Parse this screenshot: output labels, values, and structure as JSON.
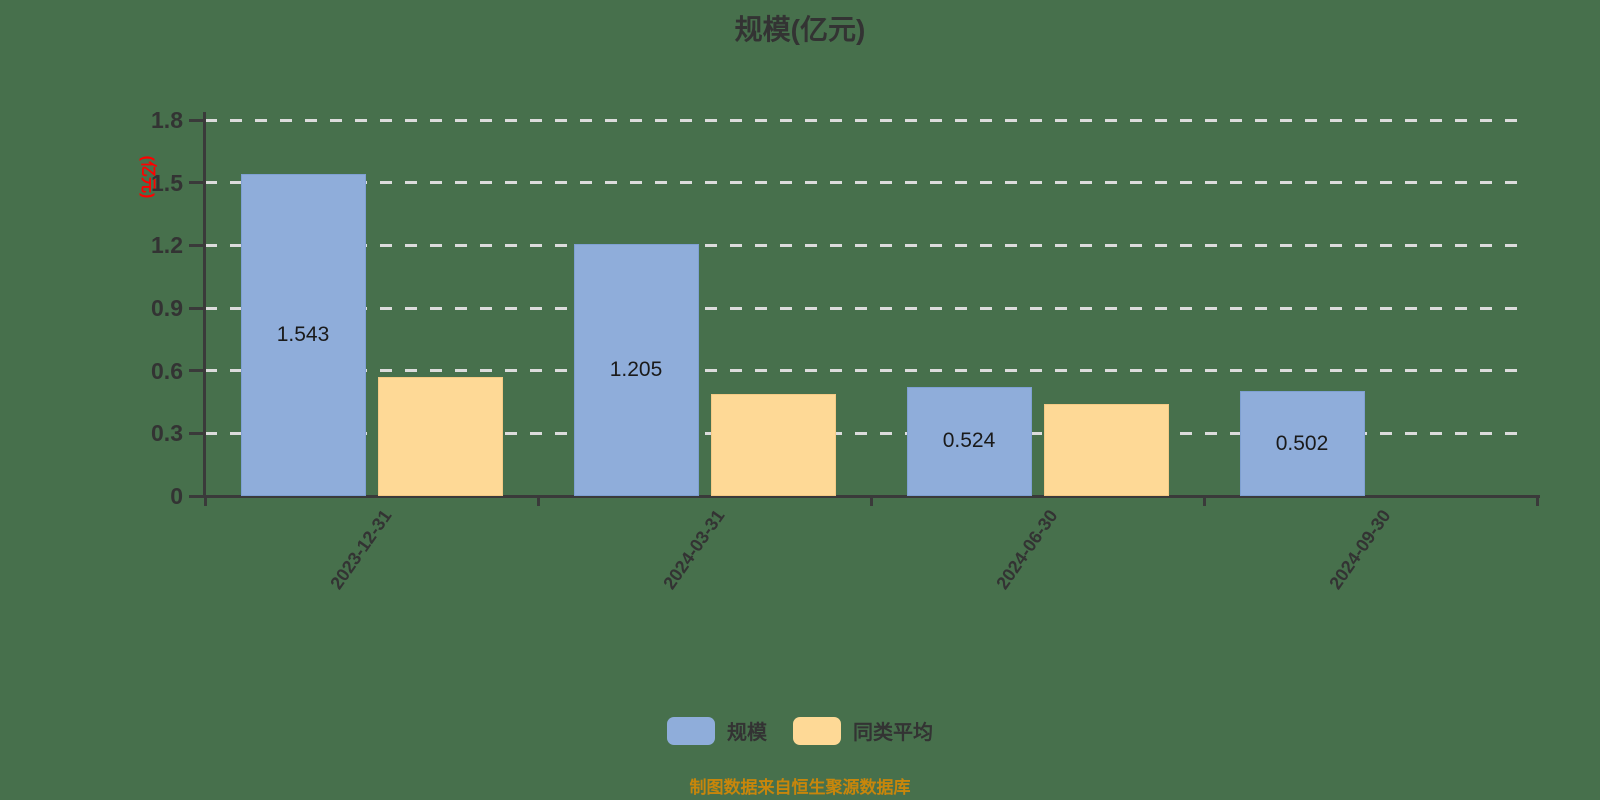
{
  "title": "规模(亿元)",
  "y_axis": {
    "name": "(亿元)",
    "ticks": [
      "0",
      "0.3",
      "0.6",
      "0.9",
      "1.2",
      "1.5",
      "1.8"
    ],
    "tick_values": [
      0,
      0.3,
      0.6,
      0.9,
      1.2,
      1.5,
      1.8
    ]
  },
  "chart_data": {
    "type": "bar",
    "title": "规模(亿元)",
    "ylabel": "(亿元)",
    "xlabel": "",
    "ylim": [
      0,
      1.8
    ],
    "grid": "dashed-horizontal",
    "legend_position": "bottom",
    "categories": [
      "2023-12-31",
      "2024-03-31",
      "2024-06-30",
      "2024-09-30"
    ],
    "series": [
      {
        "name": "规模",
        "color": "#8FADDA",
        "border_color": "#7FA0D2",
        "values": [
          1.543,
          1.205,
          0.524,
          0.502
        ],
        "labels": [
          "1.543",
          "1.205",
          "0.524",
          "0.502"
        ]
      },
      {
        "name": "同类平均",
        "color": "#FED996",
        "border_color": "#F5CA85",
        "values": [
          0.57,
          0.49,
          0.44,
          null
        ],
        "labels": [
          null,
          null,
          null,
          null
        ]
      }
    ]
  },
  "legend": {
    "items": [
      {
        "label": "规模",
        "color": "#8FADDA"
      },
      {
        "label": "同类平均",
        "color": "#FED996"
      }
    ]
  },
  "footer": {
    "text": "制图数据来自恒生聚源数据库"
  },
  "colors": {
    "background": "#47704C",
    "axis": "#3A3A3A",
    "grid": "#DCDCDC",
    "text": "#333333",
    "bar_label": "#1A1A1A",
    "axis_name": "#FF0000",
    "footer": "#C8860B"
  }
}
